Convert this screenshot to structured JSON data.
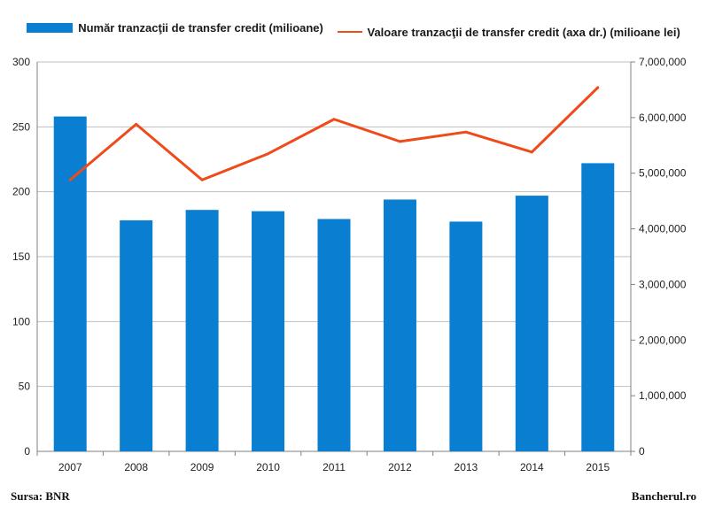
{
  "legend": {
    "bar_label": "Număr tranzacţii de transfer credit (milioane)",
    "line_label": "Valoare  tranzacţii de transfer credit (axa dr.) (milioane lei)"
  },
  "footer": {
    "source": "Sursa: BNR",
    "brand": "Bancherul.ro"
  },
  "colors": {
    "bar": "#0a7fd1",
    "line": "#ee4b1b",
    "grid": "#bfbfbf",
    "axis": "#808080"
  },
  "chart_data": {
    "type": "bar",
    "categories": [
      "2007",
      "2008",
      "2009",
      "2010",
      "2011",
      "2012",
      "2013",
      "2014",
      "2015"
    ],
    "series": [
      {
        "name": "Număr tranzacţii de transfer credit (milioane)",
        "type": "bar",
        "axis": "left",
        "values": [
          258,
          178,
          186,
          185,
          179,
          194,
          177,
          197,
          222
        ]
      },
      {
        "name": "Valoare  tranzacţii de transfer credit (axa dr.) (milioane lei)",
        "type": "line",
        "axis": "right",
        "values": [
          4880000,
          5880000,
          4880000,
          5350000,
          5970000,
          5570000,
          5740000,
          5380000,
          6540000
        ]
      }
    ],
    "y_left": {
      "min": 0,
      "max": 300,
      "ticks": [
        "0",
        "50",
        "100",
        "150",
        "200",
        "250",
        "300"
      ]
    },
    "y_right": {
      "min": 0,
      "max": 7000000,
      "ticks": [
        "0",
        "1,000,000",
        "2,000,000",
        "3,000,000",
        "4,000,000",
        "5,000,000",
        "6,000,000",
        "7,000,000"
      ]
    },
    "grid": true,
    "legend_position": "top"
  }
}
